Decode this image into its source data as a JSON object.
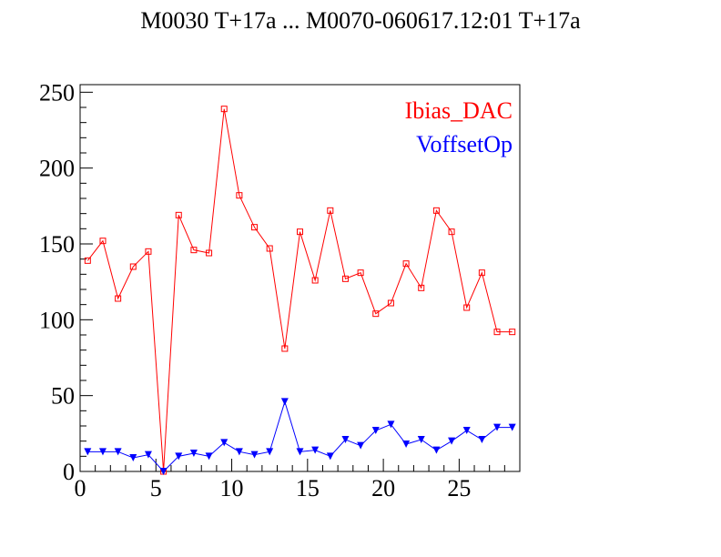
{
  "chart_data": {
    "type": "line",
    "title": "M0030 T+17a ... M0070-060617.12:01 T+17a",
    "xlabel": "",
    "ylabel": "",
    "xlim": [
      0,
      29
    ],
    "ylim": [
      0,
      255
    ],
    "x_ticks": [
      0,
      5,
      10,
      15,
      20,
      25
    ],
    "y_ticks": [
      0,
      50,
      100,
      150,
      200,
      250
    ],
    "legend_position": "top-right",
    "x": [
      0.5,
      1.5,
      2.5,
      3.5,
      4.5,
      5.5,
      6.5,
      7.5,
      8.5,
      9.5,
      10.5,
      11.5,
      12.5,
      13.5,
      14.5,
      15.5,
      16.5,
      17.5,
      18.5,
      19.5,
      20.5,
      21.5,
      22.5,
      23.5,
      24.5,
      25.5,
      26.5,
      27.5,
      28.5
    ],
    "series": [
      {
        "name": "Ibias_DAC",
        "color": "#ff0000",
        "marker": "open-square",
        "values": [
          139,
          152,
          114,
          135,
          145,
          0,
          169,
          146,
          144,
          239,
          182,
          161,
          147,
          81,
          158,
          126,
          172,
          127,
          131,
          104,
          111,
          137,
          121,
          172,
          158,
          108,
          131,
          92,
          92
        ]
      },
      {
        "name": "VoffsetOp",
        "color": "#0000ff",
        "marker": "filled-down-triangle",
        "values": [
          13,
          13,
          13,
          9,
          11,
          0,
          10,
          12,
          10,
          19,
          13,
          11,
          13,
          46,
          13,
          14,
          10,
          21,
          17,
          27,
          31,
          18,
          21,
          14,
          20,
          27,
          21,
          29,
          29
        ]
      }
    ]
  }
}
